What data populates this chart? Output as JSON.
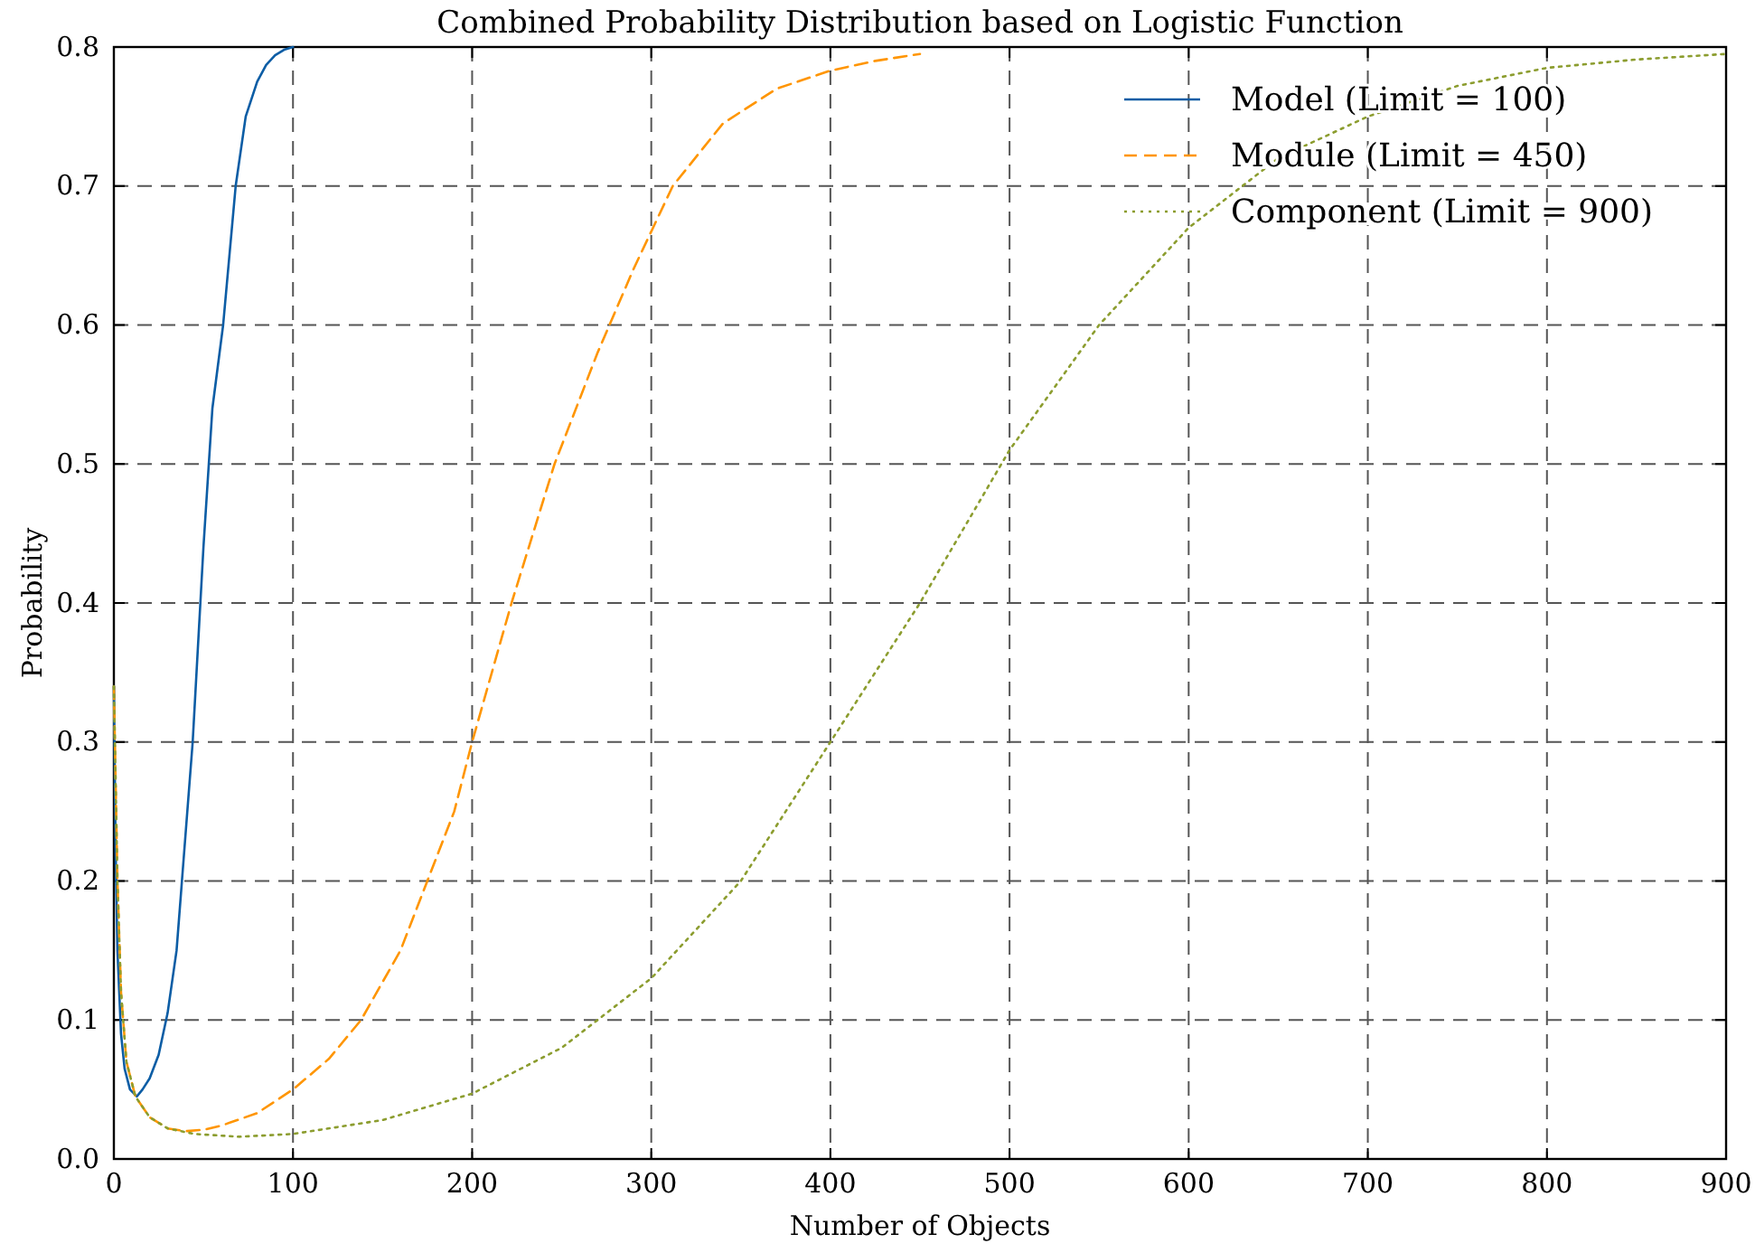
{
  "chart_data": {
    "type": "line",
    "title": "Combined Probability Distribution based on Logistic Function",
    "xlabel": "Number of Objects",
    "ylabel": "Probability",
    "xlim": [
      0,
      900
    ],
    "xticks": [
      0,
      100,
      200,
      300,
      400,
      500,
      600,
      700,
      800,
      900
    ],
    "ylim": [
      0,
      0.8
    ],
    "yticks": [
      {
        "value": 0,
        "label": "0.0"
      },
      0.1,
      0.2,
      0.3,
      0.4,
      0.5,
      0.6,
      0.7,
      0.8
    ],
    "grid": true,
    "legend": "top right",
    "series": [
      {
        "name": "Model (Limit = 100)",
        "color": "#0c5da5",
        "line_style": "solid",
        "x": [
          0,
          1,
          2,
          4,
          6,
          9,
          12.8,
          16,
          20,
          25,
          30,
          35,
          38,
          44,
          50,
          53,
          55,
          61,
          68,
          73.6,
          80,
          85,
          90,
          95,
          100
        ],
        "values": [
          0.34,
          0.22,
          0.15,
          0.09,
          0.065,
          0.05,
          0.045,
          0.05,
          0.058,
          0.075,
          0.105,
          0.15,
          0.2,
          0.3,
          0.44,
          0.5,
          0.54,
          0.6,
          0.7,
          0.75,
          0.775,
          0.787,
          0.794,
          0.798,
          0.8
        ]
      },
      {
        "name": "Module (Limit = 450)",
        "color": "#ff9500",
        "line_style": "dashed",
        "x": [
          0,
          2,
          4,
          7,
          12,
          20,
          30,
          40,
          50,
          60,
          80,
          100,
          120,
          138,
          160,
          175,
          190,
          200,
          222,
          246,
          270,
          290,
          312,
          340,
          370,
          400,
          425,
          450
        ],
        "values": [
          0.34,
          0.2,
          0.12,
          0.07,
          0.045,
          0.03,
          0.022,
          0.02,
          0.021,
          0.024,
          0.033,
          0.05,
          0.072,
          0.1,
          0.15,
          0.2,
          0.25,
          0.3,
          0.4,
          0.5,
          0.58,
          0.64,
          0.7,
          0.745,
          0.77,
          0.783,
          0.79,
          0.795
        ]
      },
      {
        "name": "Component (Limit = 900)",
        "color": "#8c9d2f",
        "line_style": "dotted",
        "x": [
          0,
          2,
          4,
          7,
          12,
          20,
          30,
          45,
          70,
          100,
          150,
          200,
          250,
          300,
          350,
          400,
          450,
          500,
          550,
          600,
          650,
          700,
          750,
          800,
          850,
          900
        ],
        "values": [
          0.34,
          0.2,
          0.12,
          0.07,
          0.045,
          0.03,
          0.022,
          0.018,
          0.016,
          0.018,
          0.028,
          0.047,
          0.08,
          0.13,
          0.2,
          0.3,
          0.4,
          0.51,
          0.6,
          0.67,
          0.72,
          0.75,
          0.772,
          0.785,
          0.791,
          0.795
        ]
      }
    ]
  }
}
